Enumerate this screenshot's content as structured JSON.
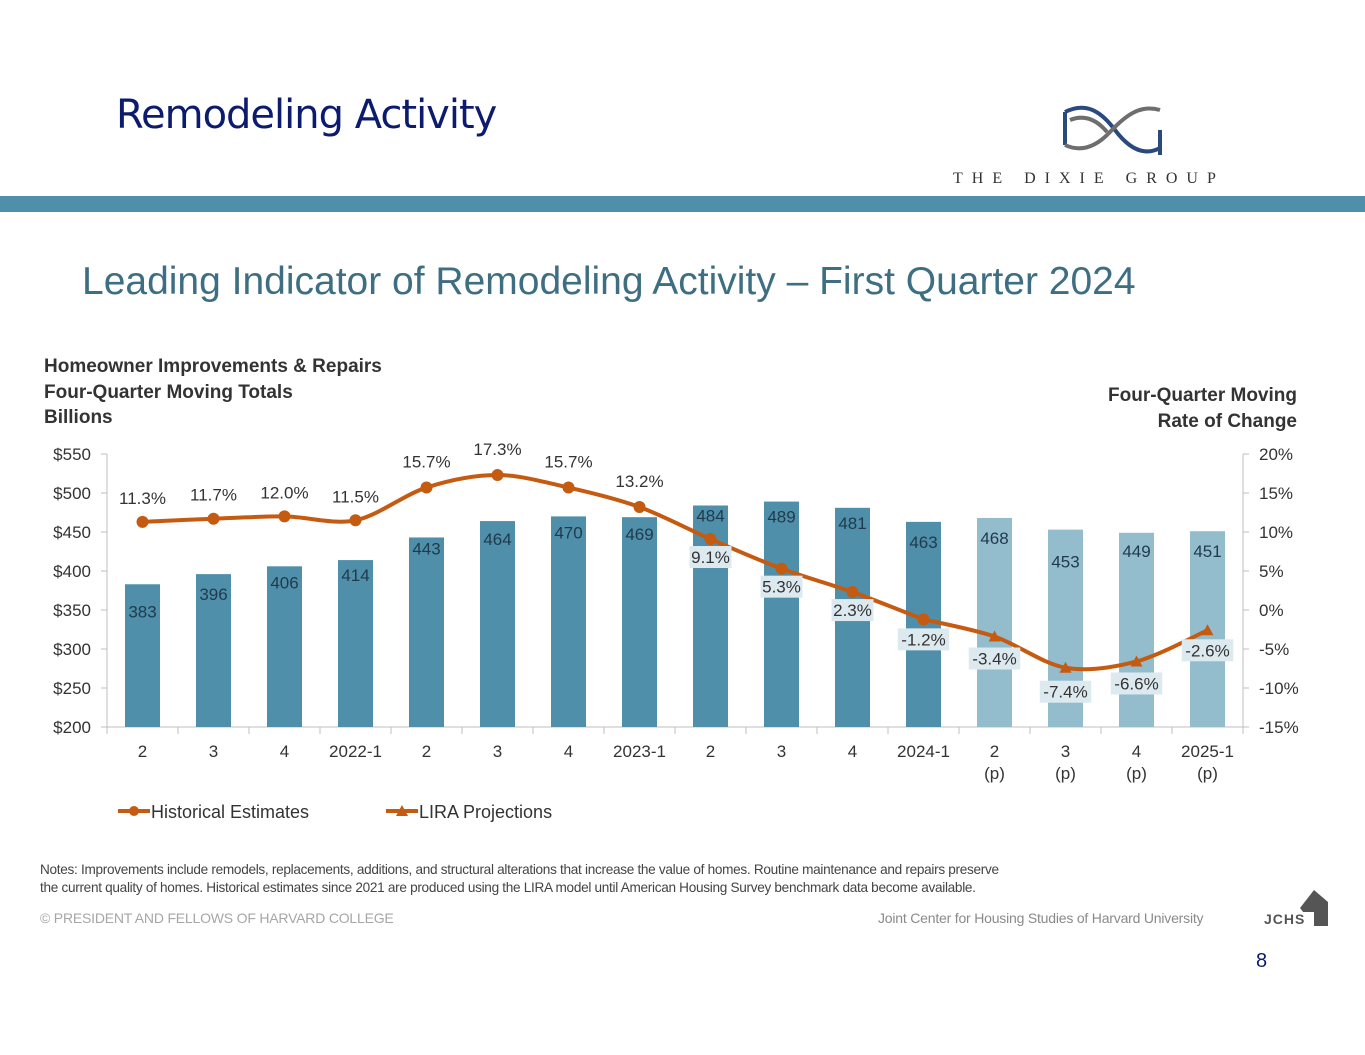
{
  "slide": {
    "title": "Remodeling Activity",
    "logo_text": "THE DIXIE GROUP",
    "page_number": "8"
  },
  "chart_heading": "Leading Indicator of Remodeling Activity – First Quarter 2024",
  "left_axis_title": [
    "Homeowner Improvements & Repairs",
    "Four-Quarter Moving Totals",
    "Billions"
  ],
  "right_axis_title": [
    "Four-Quarter Moving",
    "Rate of Change"
  ],
  "notes": [
    "Notes: Improvements include remodels, replacements, additions, and structural alterations that increase the value of homes. Routine maintenance and repairs preserve",
    "the current quality of homes. Historical estimates since 2021 are produced using the LIRA model until American Housing Survey benchmark data become available."
  ],
  "footer": {
    "copyright": "© PRESIDENT AND FELLOWS OF HARVARD COLLEGE",
    "source": "Joint Center for Housing Studies of Harvard University",
    "source_logo": "JCHS"
  },
  "colors": {
    "bar_historical": "#4f8faa",
    "bar_projected": "#93bccd",
    "line": "#c55a11",
    "title_navy": "#0c1b6e",
    "band": "#4f8faa"
  },
  "chart_data": {
    "type": "bar",
    "title": "Leading Indicator of Remodeling Activity – First Quarter 2024",
    "categories": [
      [
        "2"
      ],
      [
        "3"
      ],
      [
        "4"
      ],
      [
        "2022-1"
      ],
      [
        "2"
      ],
      [
        "3"
      ],
      [
        "4"
      ],
      [
        "2023-1"
      ],
      [
        "2"
      ],
      [
        "3"
      ],
      [
        "4"
      ],
      [
        "2024-1"
      ],
      [
        "2",
        "(p)"
      ],
      [
        "3",
        "(p)"
      ],
      [
        "4",
        "(p)"
      ],
      [
        "2025-1",
        "(p)"
      ]
    ],
    "projected_from_index": 12,
    "series": [
      {
        "name": "Homeowner Improvements & Repairs ($B)",
        "axis": "left",
        "type": "bar",
        "values": [
          383,
          396,
          406,
          414,
          443,
          464,
          470,
          469,
          484,
          489,
          481,
          463,
          468,
          453,
          449,
          451
        ],
        "labels": [
          "383",
          "396",
          "406",
          "414",
          "443",
          "464",
          "470",
          "469",
          "484",
          "489",
          "481",
          "463",
          "468",
          "453",
          "449",
          "451"
        ]
      },
      {
        "name": "Historical Estimates",
        "axis": "right",
        "type": "line",
        "marker": "circle",
        "values": [
          11.3,
          11.7,
          12.0,
          11.5,
          15.7,
          17.3,
          15.7,
          13.2,
          9.1,
          5.3,
          2.3,
          -1.2,
          null,
          null,
          null,
          null
        ],
        "labels": [
          "11.3%",
          "11.7%",
          "12.0%",
          "11.5%",
          "15.7%",
          "17.3%",
          "15.7%",
          "13.2%",
          "9.1%",
          "5.3%",
          "2.3%",
          "-1.2%",
          "",
          "",
          "",
          ""
        ]
      },
      {
        "name": "LIRA Projections",
        "axis": "right",
        "type": "line",
        "marker": "triangle",
        "values": [
          null,
          null,
          null,
          null,
          null,
          null,
          null,
          null,
          null,
          null,
          null,
          -1.2,
          -3.4,
          -7.4,
          -6.6,
          -2.6
        ],
        "labels": [
          "",
          "",
          "",
          "",
          "",
          "",
          "",
          "",
          "",
          "",
          "",
          "",
          "-3.4%",
          "-7.4%",
          "-6.6%",
          "-2.6%"
        ]
      }
    ],
    "left_axis": {
      "range": [
        200,
        550
      ],
      "step": 50,
      "ticks": [
        "$200",
        "$250",
        "$300",
        "$350",
        "$400",
        "$450",
        "$500",
        "$550"
      ]
    },
    "right_axis": {
      "range": [
        -15,
        20
      ],
      "step": 5,
      "ticks": [
        "-15%",
        "-10%",
        "-5%",
        "0%",
        "5%",
        "10%",
        "15%",
        "20%"
      ]
    },
    "legend": {
      "position": "bottom-left",
      "items": [
        "Historical Estimates",
        "LIRA Projections"
      ]
    },
    "grid": false
  }
}
